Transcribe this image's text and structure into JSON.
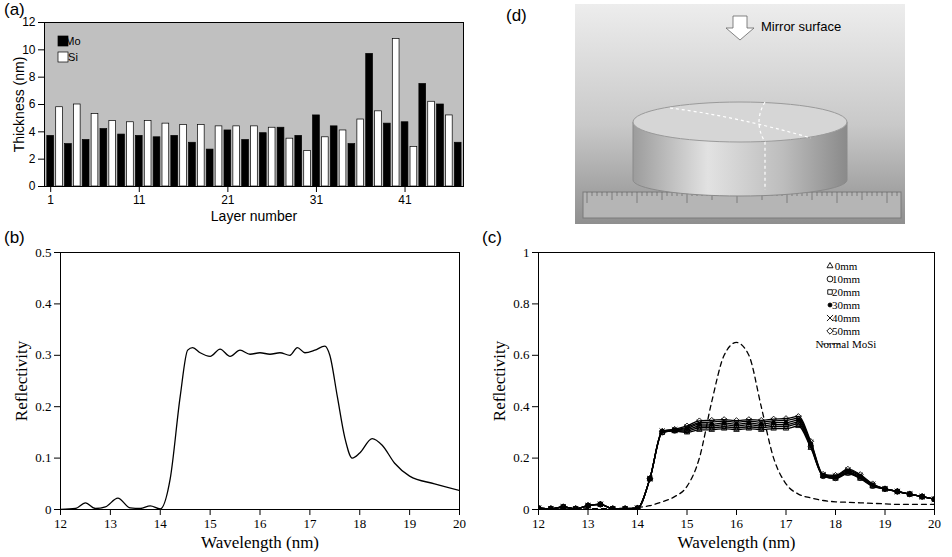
{
  "chart_data": [
    {
      "type": "bar",
      "title": "(a)",
      "xlabel": "Layer number",
      "ylabel": "Thickness (nm)",
      "x": [
        1,
        2,
        3,
        4,
        5,
        6,
        7,
        8,
        9,
        10,
        11,
        12,
        13,
        14,
        15,
        16,
        17,
        18,
        19,
        20,
        21,
        22,
        23,
        24,
        25,
        26,
        27,
        28,
        29,
        30,
        31,
        32,
        33,
        34,
        35,
        36,
        37,
        38,
        39,
        40,
        41,
        42,
        43,
        44,
        45,
        46,
        47
      ],
      "series": [
        {
          "name": "Mo",
          "color": "#000000",
          "values": [
            3.7,
            null,
            3.1,
            null,
            3.4,
            null,
            4.2,
            null,
            3.8,
            null,
            3.7,
            null,
            3.6,
            null,
            3.7,
            null,
            3.2,
            null,
            2.7,
            null,
            4.1,
            null,
            3.4,
            null,
            3.9,
            null,
            4.3,
            null,
            3.7,
            null,
            5.2,
            null,
            4.4,
            null,
            3.1,
            null,
            9.7,
            null,
            4.6,
            null,
            4.7,
            null,
            7.5,
            null,
            6.0,
            null,
            3.2
          ]
        },
        {
          "name": "Si",
          "color": "#ffffff",
          "values": [
            null,
            5.8,
            null,
            6.0,
            null,
            5.3,
            null,
            4.8,
            null,
            4.7,
            null,
            4.8,
            null,
            4.6,
            null,
            4.5,
            null,
            4.5,
            null,
            4.4,
            null,
            4.4,
            null,
            4.4,
            null,
            4.3,
            null,
            3.5,
            null,
            2.6,
            null,
            3.6,
            null,
            4.1,
            null,
            4.9,
            null,
            5.5,
            null,
            10.8,
            null,
            2.9,
            null,
            6.2,
            null,
            5.2,
            null
          ]
        }
      ],
      "xlim": [
        0.3,
        47.6
      ],
      "xticks": [
        1,
        11,
        21,
        31,
        41
      ],
      "ylim": [
        0,
        12
      ],
      "yticks": [
        0,
        2,
        4,
        6,
        8,
        10,
        12
      ],
      "legend": "top left",
      "grid": false
    },
    {
      "type": "line",
      "title": "(b)",
      "xlabel": "Wavelength (nm)",
      "ylabel": "Reflectivity",
      "x": [
        12,
        12.3,
        12.5,
        12.7,
        12.9,
        13.15,
        13.4,
        13.6,
        13.8,
        14,
        14.2,
        14.4,
        14.55,
        14.65,
        14.8,
        15,
        15.2,
        15.4,
        15.6,
        15.8,
        16,
        16.2,
        16.4,
        16.6,
        16.75,
        16.9,
        17.1,
        17.3,
        17.4,
        17.55,
        17.7,
        17.85,
        18,
        18.25,
        18.45,
        18.7,
        19,
        19.5,
        20
      ],
      "series": [
        {
          "name": "Reflectivity",
          "color": "#000000",
          "values": [
            0,
            0.002,
            0.013,
            0.002,
            0.005,
            0.022,
            0.003,
            0.002,
            0.007,
            0.001,
            0.06,
            0.22,
            0.31,
            0.315,
            0.305,
            0.298,
            0.312,
            0.298,
            0.31,
            0.302,
            0.305,
            0.302,
            0.305,
            0.3,
            0.315,
            0.305,
            0.31,
            0.318,
            0.3,
            0.22,
            0.14,
            0.1,
            0.11,
            0.138,
            0.125,
            0.09,
            0.065,
            0.05,
            0.037
          ]
        }
      ],
      "xlim": [
        12,
        20
      ],
      "xticks": [
        12,
        13,
        14,
        15,
        16,
        17,
        18,
        19,
        20
      ],
      "ylim": [
        0,
        0.5
      ],
      "yticks": [
        0,
        0.1,
        0.2,
        0.3,
        0.4,
        0.5
      ],
      "grid": false
    },
    {
      "type": "line",
      "title": "(c)",
      "xlabel": "Wavelength (nm)",
      "ylabel": "Reflectivity",
      "x": [
        12,
        12.25,
        12.5,
        12.75,
        13,
        13.25,
        13.5,
        13.75,
        14,
        14.25,
        14.5,
        14.75,
        15,
        15.25,
        15.5,
        15.75,
        16,
        16.25,
        16.5,
        16.75,
        17,
        17.25,
        17.5,
        17.75,
        18,
        18.25,
        18.5,
        18.75,
        19,
        19.25,
        19.5,
        19.75,
        20
      ],
      "series": [
        {
          "name": "0mm",
          "color": "#000000",
          "marker": "triangle",
          "values": [
            0.005,
            0.003,
            0.01,
            0.003,
            0.015,
            0.02,
            0.003,
            0.003,
            0.005,
            0.12,
            0.3,
            0.305,
            0.3,
            0.31,
            0.31,
            0.315,
            0.31,
            0.315,
            0.31,
            0.315,
            0.315,
            0.325,
            0.24,
            0.13,
            0.12,
            0.14,
            0.12,
            0.09,
            0.08,
            0.07,
            0.06,
            0.05,
            0.04
          ]
        },
        {
          "name": "10mm",
          "color": "#000000",
          "marker": "circle",
          "values": [
            0.005,
            0.003,
            0.01,
            0.003,
            0.015,
            0.02,
            0.003,
            0.003,
            0.005,
            0.12,
            0.3,
            0.307,
            0.305,
            0.318,
            0.318,
            0.322,
            0.318,
            0.322,
            0.318,
            0.323,
            0.323,
            0.333,
            0.245,
            0.13,
            0.122,
            0.143,
            0.123,
            0.092,
            0.08,
            0.07,
            0.06,
            0.05,
            0.04
          ]
        },
        {
          "name": "20mm",
          "color": "#000000",
          "marker": "square",
          "values": [
            0.005,
            0.003,
            0.01,
            0.003,
            0.015,
            0.02,
            0.003,
            0.003,
            0.005,
            0.12,
            0.3,
            0.308,
            0.31,
            0.325,
            0.325,
            0.33,
            0.325,
            0.33,
            0.325,
            0.33,
            0.33,
            0.34,
            0.25,
            0.132,
            0.125,
            0.146,
            0.126,
            0.094,
            0.08,
            0.07,
            0.06,
            0.05,
            0.04
          ]
        },
        {
          "name": "30mm",
          "color": "#000000",
          "marker": "dot",
          "values": [
            0.005,
            0.003,
            0.01,
            0.003,
            0.015,
            0.02,
            0.003,
            0.003,
            0.005,
            0.12,
            0.305,
            0.31,
            0.315,
            0.332,
            0.332,
            0.337,
            0.332,
            0.337,
            0.332,
            0.338,
            0.338,
            0.348,
            0.255,
            0.133,
            0.128,
            0.15,
            0.13,
            0.096,
            0.08,
            0.07,
            0.06,
            0.05,
            0.04
          ]
        },
        {
          "name": "40mm",
          "color": "#000000",
          "marker": "times",
          "values": [
            0.005,
            0.003,
            0.01,
            0.003,
            0.015,
            0.02,
            0.003,
            0.003,
            0.005,
            0.12,
            0.305,
            0.31,
            0.32,
            0.338,
            0.34,
            0.344,
            0.34,
            0.344,
            0.34,
            0.345,
            0.346,
            0.355,
            0.26,
            0.135,
            0.13,
            0.153,
            0.133,
            0.098,
            0.08,
            0.07,
            0.06,
            0.05,
            0.04
          ]
        },
        {
          "name": "50mm",
          "color": "#000000",
          "marker": "diamond",
          "values": [
            0.005,
            0.003,
            0.01,
            0.003,
            0.015,
            0.02,
            0.003,
            0.003,
            0.005,
            0.12,
            0.305,
            0.312,
            0.325,
            0.345,
            0.347,
            0.35,
            0.346,
            0.35,
            0.347,
            0.352,
            0.354,
            0.362,
            0.265,
            0.137,
            0.133,
            0.157,
            0.136,
            0.1,
            0.08,
            0.07,
            0.06,
            0.05,
            0.04
          ]
        },
        {
          "name": "Normal MoSi",
          "color": "#000000",
          "line_style": "dashed",
          "values": [
            0,
            0,
            0.002,
            0.002,
            0.003,
            0.003,
            0.004,
            0.005,
            0.008,
            0.015,
            0.03,
            0.05,
            0.09,
            0.2,
            0.42,
            0.6,
            0.65,
            0.6,
            0.4,
            0.2,
            0.1,
            0.06,
            0.045,
            0.035,
            0.03,
            0.028,
            0.026,
            0.024,
            0.022,
            0.02,
            0.02,
            0.02,
            0.02
          ]
        }
      ],
      "xlim": [
        12,
        20
      ],
      "xticks": [
        12,
        13,
        14,
        15,
        16,
        17,
        18,
        19,
        20
      ],
      "ylim": [
        0,
        1
      ],
      "yticks": [
        0,
        0.2,
        0.4,
        0.6,
        0.8,
        1
      ],
      "legend": "top right",
      "grid": false
    }
  ],
  "photo": {
    "title": "(d)",
    "annotation": "Mirror surface"
  }
}
